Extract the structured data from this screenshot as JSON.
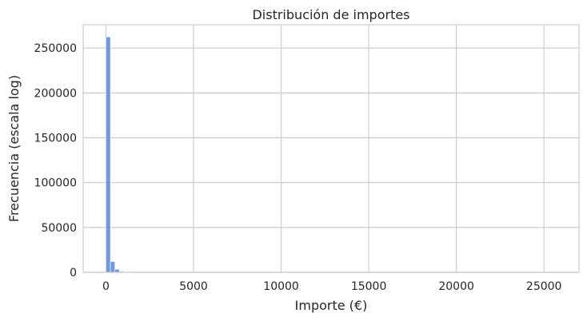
{
  "chart_data": {
    "type": "bar",
    "title": "Distribución de importes",
    "xlabel": "Importe (€)",
    "ylabel": "Frecuencia (escala log)",
    "xlim": [
      -1300,
      27000
    ],
    "ylim": [
      0,
      276000
    ],
    "x_ticks": [
      0,
      5000,
      10000,
      15000,
      20000,
      25000
    ],
    "y_ticks": [
      0,
      50000,
      100000,
      150000,
      200000,
      250000
    ],
    "grid": true,
    "bar_color": "#4c7fd6",
    "grid_color": "#cccccc",
    "bin_width": 255,
    "bins": [
      {
        "x0": 0,
        "count": 262500
      },
      {
        "x0": 255,
        "count": 12000
      },
      {
        "x0": 510,
        "count": 3300
      },
      {
        "x0": 765,
        "count": 1100
      },
      {
        "x0": 1020,
        "count": 500
      },
      {
        "x0": 1275,
        "count": 250
      },
      {
        "x0": 1530,
        "count": 120
      },
      {
        "x0": 1785,
        "count": 60
      }
    ]
  }
}
